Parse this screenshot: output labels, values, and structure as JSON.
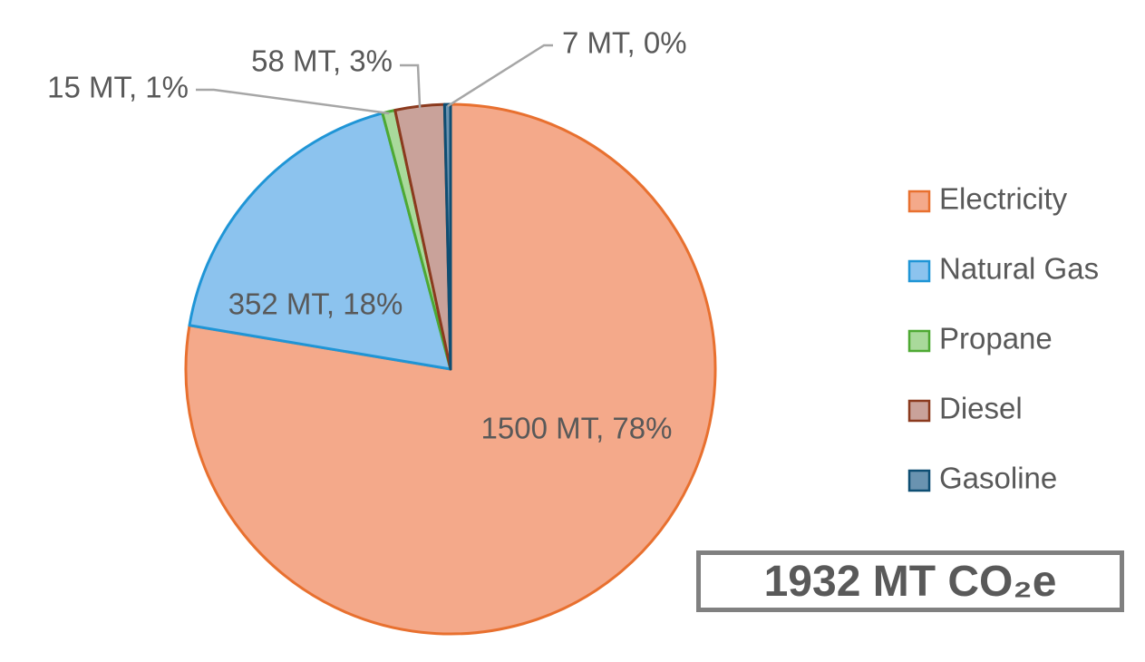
{
  "chart_data": {
    "type": "pie",
    "start_angle_deg": 0,
    "direction": "clockwise",
    "slices": [
      {
        "name": "Electricity",
        "value": 1500,
        "label": "1500 MT, 78%",
        "fill": "#F4A98A",
        "stroke": "#E8702F"
      },
      {
        "name": "Natural Gas",
        "value": 352,
        "label": "352 MT, 18%",
        "fill": "#8CC3EE",
        "stroke": "#1F95D6"
      },
      {
        "name": "Propane",
        "value": 15,
        "label": "15 MT, 1%",
        "fill": "#A9D99B",
        "stroke": "#4EA933"
      },
      {
        "name": "Diesel",
        "value": 58,
        "label": "58 MT, 3%",
        "fill": "#C9A29A",
        "stroke": "#8B3A1E"
      },
      {
        "name": "Gasoline",
        "value": 7,
        "label": "7 MT, 0%",
        "fill": "#6A93B0",
        "stroke": "#0E4E73"
      }
    ],
    "legend_position": "right",
    "total_label": "1932 MT CO₂e"
  }
}
